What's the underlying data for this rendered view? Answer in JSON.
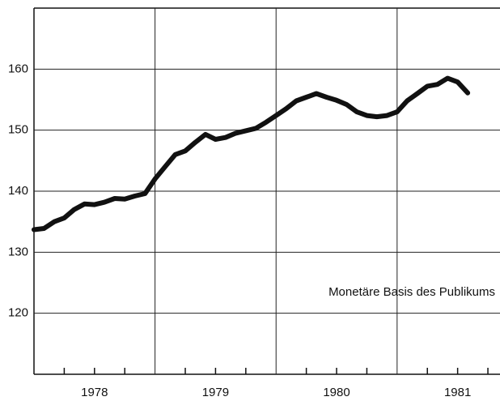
{
  "chart_data": {
    "type": "line",
    "annotation": "Monetäre Basis des Publikums",
    "x": [
      1978.0,
      1978.083,
      1978.167,
      1978.25,
      1978.333,
      1978.417,
      1978.5,
      1978.583,
      1978.667,
      1978.75,
      1978.833,
      1978.917,
      1979.0,
      1979.083,
      1979.167,
      1979.25,
      1979.333,
      1979.417,
      1979.5,
      1979.583,
      1979.667,
      1979.75,
      1979.833,
      1979.917,
      1980.0,
      1980.083,
      1980.167,
      1980.25,
      1980.333,
      1980.417,
      1980.5,
      1980.583,
      1980.667,
      1980.75,
      1980.833,
      1980.917,
      1981.0,
      1981.083,
      1981.167,
      1981.25,
      1981.333,
      1981.417,
      1981.5,
      1981.583
    ],
    "series": [
      {
        "color": "#111111",
        "values": [
          133.7,
          133.9,
          135.0,
          135.6,
          137.0,
          137.9,
          137.8,
          138.2,
          138.8,
          138.7,
          139.2,
          139.6,
          142.0,
          144.0,
          146.0,
          146.6,
          148.0,
          149.3,
          148.5,
          148.8,
          149.5,
          149.9,
          150.3,
          151.3,
          152.4,
          153.5,
          154.8,
          155.4,
          156.0,
          155.4,
          154.9,
          154.2,
          153.0,
          152.4,
          152.2,
          152.4,
          153.0,
          154.8,
          156.0,
          157.2,
          157.5,
          158.5,
          157.9,
          156.1
        ]
      }
    ],
    "xlim": [
      1978.0,
      1981.85
    ],
    "ylim": [
      110,
      170
    ],
    "yticks": [
      120,
      130,
      140,
      150,
      160
    ],
    "xticks": [
      {
        "value": 1978.5,
        "label": "1978"
      },
      {
        "value": 1979.5,
        "label": "1979"
      },
      {
        "value": 1980.5,
        "label": "1980"
      },
      {
        "value": 1981.5,
        "label": "1981"
      }
    ],
    "xgrid": [
      1979,
      1980,
      1981
    ],
    "xminorticks": [
      1978.25,
      1978.5,
      1978.75,
      1979.25,
      1979.5,
      1979.75,
      1980.25,
      1980.5,
      1980.75,
      1981.25,
      1981.5,
      1981.75
    ],
    "grid": true
  }
}
